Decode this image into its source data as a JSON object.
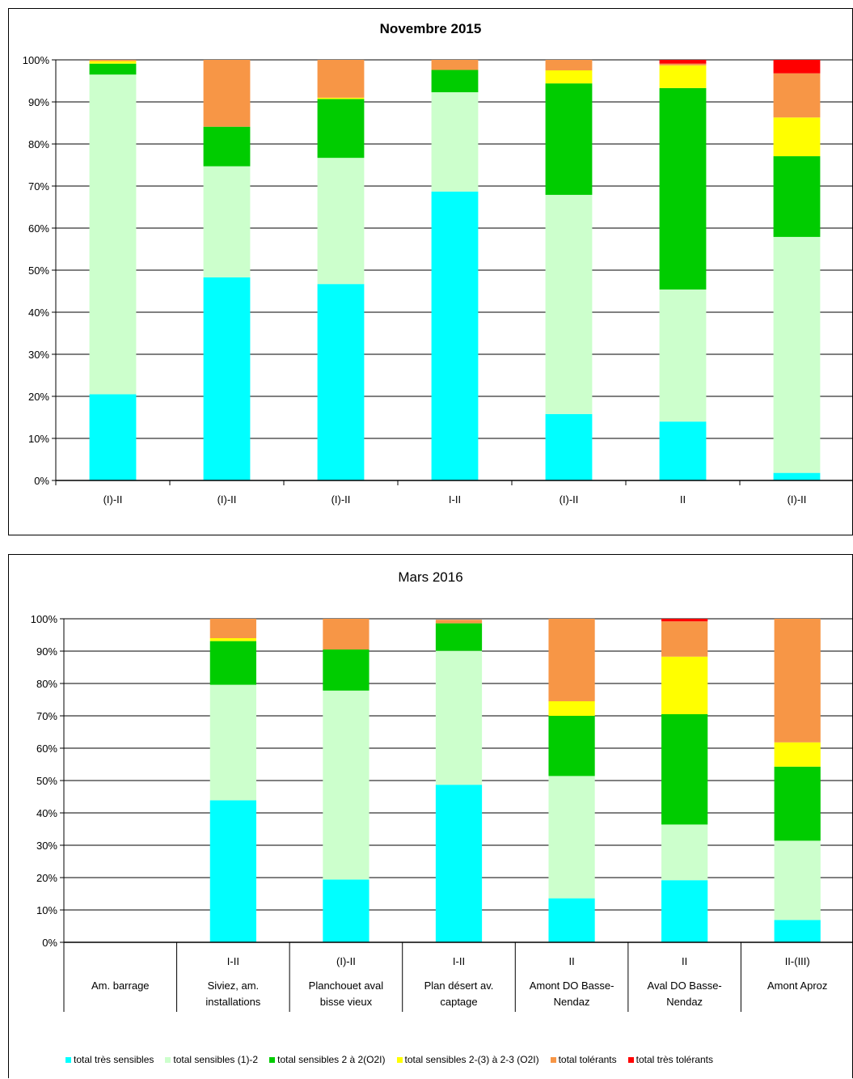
{
  "chart_data": [
    {
      "type": "bar",
      "stacked": true,
      "title": "Novembre 2015",
      "categories": [
        "(I)-II",
        "(I)-II",
        "(I)-II",
        "I-II",
        "(I)-II",
        "II",
        "(I)-II"
      ],
      "ylim": [
        0,
        100
      ],
      "yticks": [
        "0%",
        "10%",
        "20%",
        "30%",
        "40%",
        "50%",
        "60%",
        "70%",
        "80%",
        "90%",
        "100%"
      ],
      "grid": true,
      "series": [
        {
          "name": "total très sensibles",
          "color": "#00FFFF",
          "values": [
            20.5,
            48.3,
            46.7,
            68.7,
            15.8,
            14.0,
            1.8
          ]
        },
        {
          "name": "total sensibles (1)-2",
          "color": "#CCFFCC",
          "values": [
            76.0,
            26.4,
            30.0,
            23.6,
            52.1,
            31.4,
            56.1
          ]
        },
        {
          "name": "total sensibles 2 à 2(O2I)",
          "color": "#00CC00",
          "values": [
            2.6,
            9.4,
            14.0,
            5.3,
            26.5,
            47.9,
            19.2
          ]
        },
        {
          "name": "total sensibles 2-(3) à 2-3 (O2I)",
          "color": "#FFFF00",
          "values": [
            0.6,
            0,
            0.3,
            0,
            3.1,
            5.4,
            9.2
          ]
        },
        {
          "name": "total tolérants",
          "color": "#F79646",
          "values": [
            0.3,
            15.9,
            9.0,
            2.4,
            2.5,
            0.4,
            10.5
          ]
        },
        {
          "name": "total très tolérants",
          "color": "#FF0000",
          "values": [
            0,
            0,
            0,
            0,
            0,
            0.9,
            3.2
          ]
        }
      ]
    },
    {
      "type": "bar",
      "stacked": true,
      "title": "Mars 2016",
      "categories": [
        {
          "grade": "",
          "name": [
            "Am. barrage"
          ]
        },
        {
          "grade": "I-II",
          "name": [
            "Siviez, am.",
            "installations"
          ]
        },
        {
          "grade": "(I)-II",
          "name": [
            "Planchouet aval",
            "bisse vieux"
          ]
        },
        {
          "grade": "I-II",
          "name": [
            "Plan désert av.",
            "captage"
          ]
        },
        {
          "grade": "II",
          "name": [
            "Amont DO Basse-",
            "Nendaz"
          ]
        },
        {
          "grade": "II",
          "name": [
            "Aval DO Basse-",
            "Nendaz"
          ]
        },
        {
          "grade": "II-(III)",
          "name": [
            "Amont Aproz"
          ]
        }
      ],
      "ylim": [
        0,
        100
      ],
      "yticks": [
        "0%",
        "10%",
        "20%",
        "30%",
        "40%",
        "50%",
        "60%",
        "70%",
        "80%",
        "90%",
        "100%"
      ],
      "grid": true,
      "series": [
        {
          "name": "total très sensibles",
          "color": "#00FFFF",
          "values": [
            0,
            43.9,
            19.4,
            48.7,
            13.6,
            19.2,
            6.9
          ]
        },
        {
          "name": "total sensibles (1)-2",
          "color": "#CCFFCC",
          "values": [
            0,
            35.7,
            58.4,
            41.4,
            37.8,
            17.2,
            24.5
          ]
        },
        {
          "name": "total sensibles 2 à 2(O2I)",
          "color": "#00CC00",
          "values": [
            0,
            13.5,
            12.7,
            8.5,
            18.6,
            34.1,
            22.9
          ]
        },
        {
          "name": "total sensibles 2-(3) à 2-3 (O2I)",
          "color": "#FFFF00",
          "values": [
            0,
            0.9,
            0,
            0,
            4.5,
            17.8,
            7.5
          ]
        },
        {
          "name": "total tolérants",
          "color": "#F79646",
          "values": [
            0,
            6.0,
            9.5,
            1.1,
            25.5,
            10.9,
            38.2
          ]
        },
        {
          "name": "total très tolérants",
          "color": "#FF0000",
          "values": [
            0,
            0,
            0,
            0,
            0,
            0.8,
            0
          ]
        }
      ]
    }
  ],
  "legend": {
    "placement": "bottom",
    "items": [
      {
        "label": "total très sensibles",
        "color": "#00FFFF"
      },
      {
        "label": "total sensibles (1)-2",
        "color": "#CCFFCC"
      },
      {
        "label": "total sensibles 2 à 2(O2I)",
        "color": "#00CC00"
      },
      {
        "label": "total sensibles 2-(3) à 2-3 (O2I)",
        "color": "#FFFF00"
      },
      {
        "label": "total tolérants",
        "color": "#F79646"
      },
      {
        "label": "total très tolérants",
        "color": "#FF0000"
      }
    ]
  }
}
